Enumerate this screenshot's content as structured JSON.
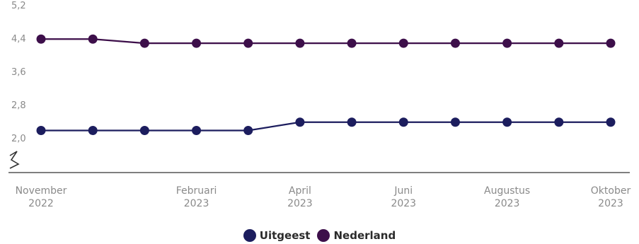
{
  "chart_data": {
    "type": "line",
    "x": [
      "2022-11",
      "2022-12",
      "2023-01",
      "2023-02",
      "2023-03",
      "2023-04",
      "2023-05",
      "2023-06",
      "2023-07",
      "2023-08",
      "2023-09",
      "2023-10"
    ],
    "tick_labels": [
      {
        "month": "2022-11",
        "line1": "November",
        "line2": "2022"
      },
      {
        "month": "2023-02",
        "line1": "Februari",
        "line2": "2023"
      },
      {
        "month": "2023-04",
        "line1": "April",
        "line2": "2023"
      },
      {
        "month": "2023-06",
        "line1": "Juni",
        "line2": "2023"
      },
      {
        "month": "2023-08",
        "line1": "Augustus",
        "line2": "2023"
      },
      {
        "month": "2023-10",
        "line1": "Oktober",
        "line2": "2023"
      }
    ],
    "yticks": [
      "2,0",
      "2,8",
      "3,6",
      "4,4",
      "5,2"
    ],
    "ylim": [
      2.0,
      5.2
    ],
    "axis_break": true,
    "grid": false,
    "legend": "bottom-center",
    "series": [
      {
        "name": "Uitgeest",
        "color": "#1c1d5e",
        "values": [
          2.4,
          2.4,
          2.4,
          2.4,
          2.4,
          2.6,
          2.6,
          2.6,
          2.6,
          2.6,
          2.6,
          2.6
        ]
      },
      {
        "name": "Nederland",
        "color": "#3d0f4a",
        "values": [
          4.6,
          4.6,
          4.5,
          4.5,
          4.5,
          4.5,
          4.5,
          4.5,
          4.5,
          4.5,
          4.5,
          4.5
        ]
      }
    ]
  }
}
